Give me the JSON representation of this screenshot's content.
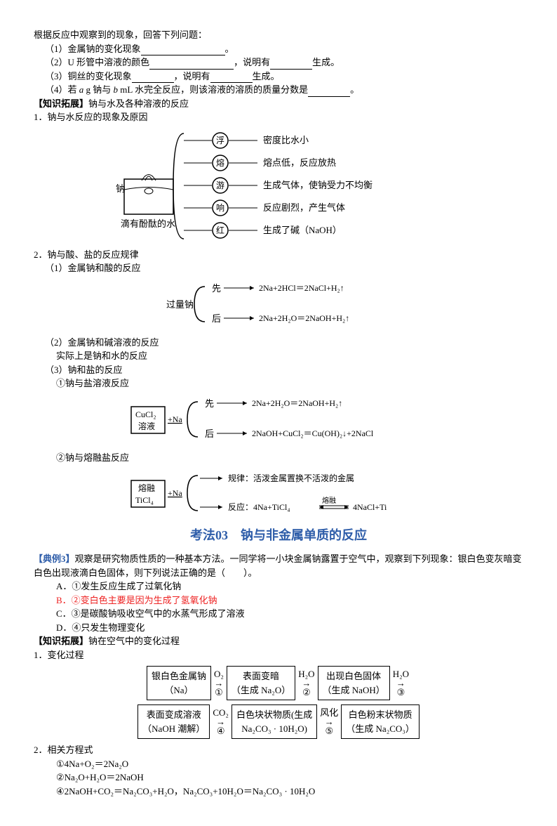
{
  "intro": "根据反应中观察到的现象，回答下列问题：",
  "q1": {
    "label": "（1）金属钠的变化现象",
    "end": "。"
  },
  "q2": {
    "label": "（2）U 形管中溶液的颜色",
    "mid": "，说明有",
    "end": "生成。"
  },
  "q3": {
    "label": "（3）铜丝的变化现象",
    "mid": "，说明有",
    "end": "生成。"
  },
  "q4": {
    "a": "（4）若 ",
    "i1": "a",
    "b": " g 钠与 ",
    "i2": "b",
    "c": " mL 水完全反应，则该溶液的溶质的质量分数是",
    "end": "。"
  },
  "zz1": {
    "tag": "【知识拓展】",
    "t": "钠与水及各种溶液的反应"
  },
  "s1": "1．钠与水反应的现象及原因",
  "d1": {
    "na": "钠",
    "water": "滴有酚酞的水",
    "items": [
      {
        "key": "浮",
        "desc": "密度比水小",
        "u": "小"
      },
      {
        "key": "熔",
        "desc": "熔点低，反应放热",
        "u": "放热"
      },
      {
        "key": "游",
        "desc": "生成气体，使钠受力不均衡",
        "u": "气体"
      },
      {
        "key": "响",
        "desc": "反应剧烈，产生气体"
      },
      {
        "key": "红",
        "desc": "生成了碱（NaOH）",
        "u": "碱"
      }
    ]
  },
  "s2": "2．钠与酸、盐的反应规律",
  "s2a": "（1）金属钠和酸的反应",
  "d2": {
    "left": "过量钠",
    "xian": "先",
    "hou": "后",
    "e1": "2Na+2HCl＝2NaCl+H₂↑",
    "e2": "2Na+2H₂O＝2NaOH+H₂↑"
  },
  "s2b": "（2）金属钠和碱溶液的反应",
  "s2b2": "实际上是钠和水的反应",
  "s2c": "（3）钠和盐的反应",
  "s2c1": "①钠与盐溶液反应",
  "d3": {
    "box1": "CuCl₂",
    "box2": "溶液",
    "plus": "+Na",
    "xian": "先",
    "hou": "后",
    "e1": "2Na+2H₂O＝2NaOH+H₂↑",
    "e2": "2NaOH+CuCl₂＝Cu（OH）₂↓+2NaCl"
  },
  "s2c2": "②钠与熔融盐反应",
  "d4": {
    "box1": "熔融",
    "box2": "TiCl₄",
    "plus": "+Na",
    "r1": "规律：活泼金属置换不活泼的金属",
    "r2a": "反应：4Na+TiCl₄",
    "r2b": "4NaCl+Ti",
    "r2m": "熔融"
  },
  "title": "考法03　钠与非金属单质的反应",
  "ex3": {
    "tag": "【典例3】",
    "text": "观察是研究物质性质的一种基本方法。一同学将一小块金属钠露置于空气中，观察到下列现象：银白色变灰暗变白色出现液滴白色固体，则下列说法正确的是（　　）。"
  },
  "opts": {
    "A": "A．①发生反应生成了过氧化钠",
    "B": "B．②变白色主要是因为生成了氢氧化钠",
    "C": "C．③是碳酸钠吸收空气中的水蒸气形成了溶液",
    "D": "D．④只发生物理变化"
  },
  "zz2": {
    "tag": "【知识拓展】",
    "t": "钠在空气中的变化过程"
  },
  "p1": "1．变化过程",
  "flow": {
    "b1": [
      "银白色金属钠",
      "（Na）"
    ],
    "a1t": "O₂",
    "a1b": "①",
    "b2": [
      "表面变暗",
      "（生成 Na₂O）"
    ],
    "a2t": "H₂O",
    "a2b": "②",
    "b3": [
      "出现白色固体",
      "（生成 NaOH）"
    ],
    "a3t": "H₂O",
    "a3b": "③",
    "b4": [
      "表面变成溶液",
      "（NaOH 潮解）"
    ],
    "a4t": "CO₂",
    "a4b": "④",
    "b5": [
      "白色块状物质(生成",
      "Na₂CO₃ · 10H₂O)"
    ],
    "a5t": "风化",
    "a5b": "⑤",
    "b6": [
      "白色粉末状物质",
      "（生成 Na₂CO₃）"
    ]
  },
  "p2": "2．相关方程式",
  "eqs": [
    "①4Na+O₂＝2Na₂O",
    "②Na₂O+H₂O＝2NaOH",
    "④2NaOH+CO₂＝Na₂CO₃+H₂O，Na₂CO₃+10H₂O＝Na₂CO₃ · 10H₂O"
  ],
  "colors": {
    "blue": "#2e5da9",
    "red": "#e22"
  }
}
